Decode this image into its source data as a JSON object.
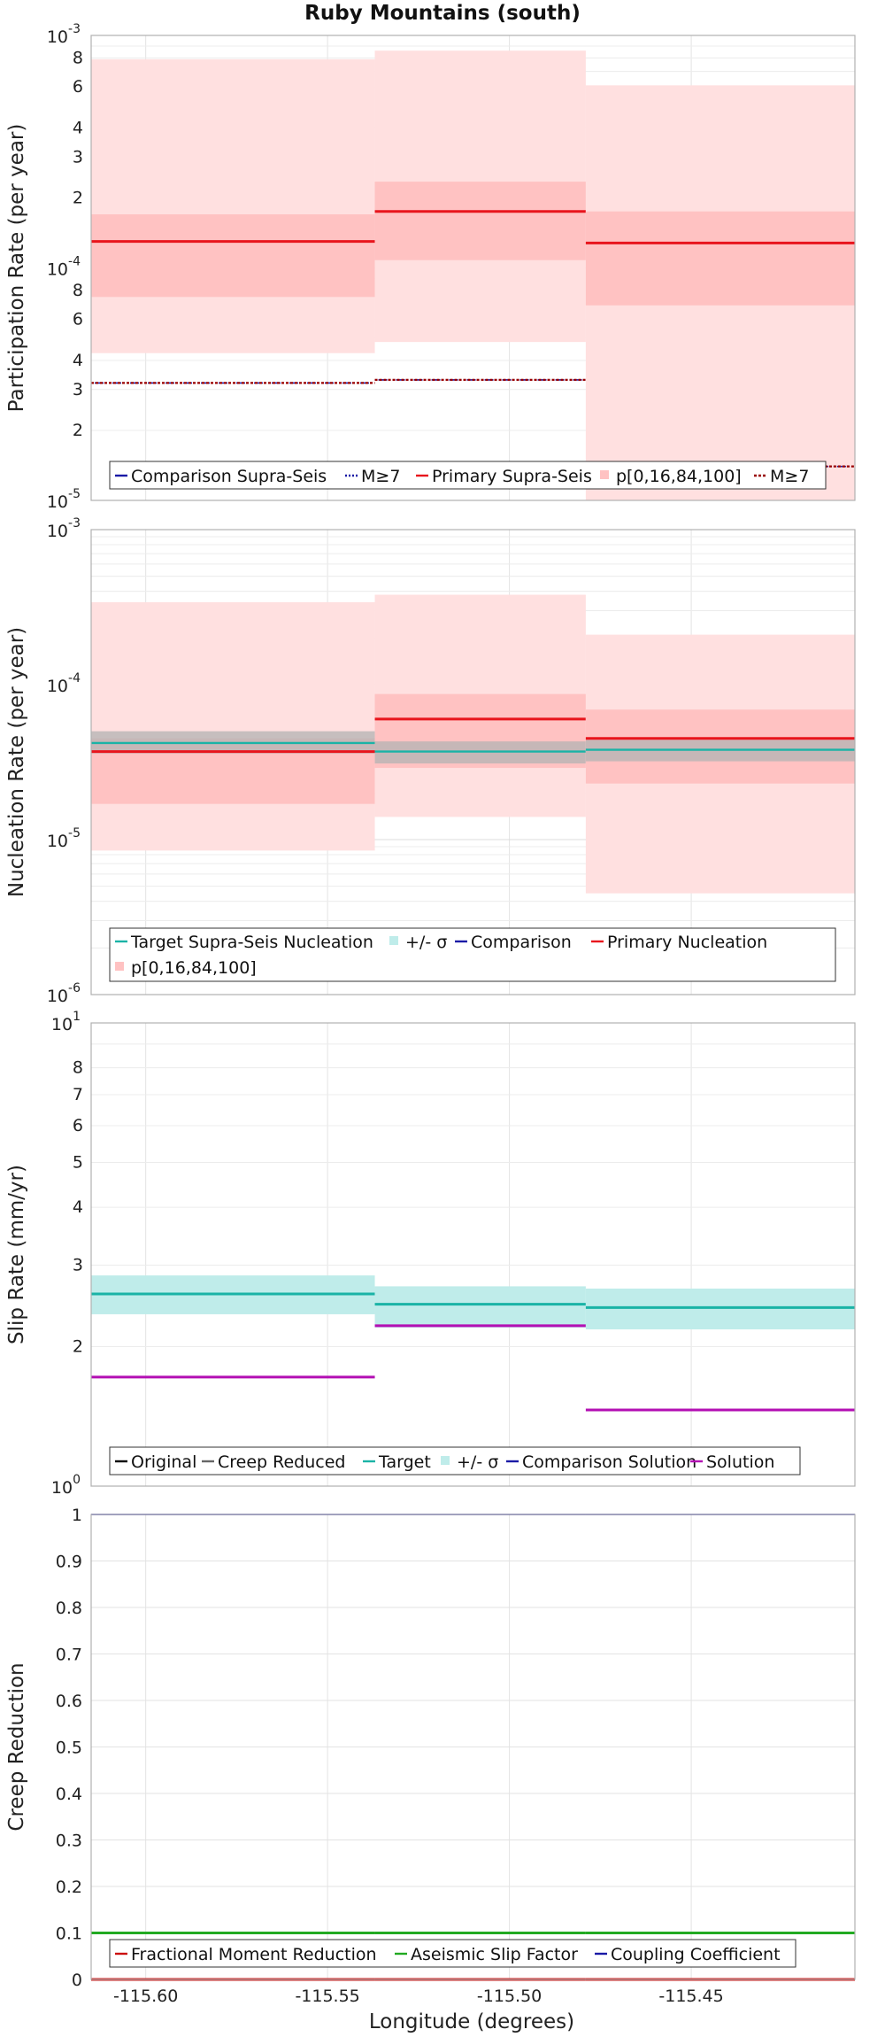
{
  "figure": {
    "title": "Ruby Mountains (south)",
    "xlabel": "Longitude (degrees)",
    "xticks": [
      "-115.60",
      "-115.55",
      "-115.50",
      "-115.45"
    ]
  },
  "chart_data": [
    {
      "type": "line",
      "ylabel": "Participation Rate (per year)",
      "yscale": "log",
      "ylim": [
        1e-05,
        0.001
      ],
      "xlim": [
        -115.615,
        -115.405
      ],
      "bins": [
        {
          "x0": -115.615,
          "x1": -115.537,
          "primary": 0.00013,
          "p16": 7.5e-05,
          "p84": 0.00017,
          "p0": 4.3e-05,
          "p100": 0.00079,
          "comparison_m7": 3.2e-05,
          "primary_m7": 3.2e-05
        },
        {
          "x0": -115.537,
          "x1": -115.479,
          "primary": 0.000175,
          "p16": 0.000108,
          "p84": 0.000235,
          "p0": 4.8e-05,
          "p100": 0.00086,
          "comparison_m7": 3.3e-05,
          "primary_m7": 3.3e-05
        },
        {
          "x0": -115.479,
          "x1": -115.405,
          "primary": 0.000128,
          "p16": 6.9e-05,
          "p84": 0.000175,
          "p0": 1e-05,
          "p100": 0.00061,
          "comparison_m7": 1.4e-05,
          "primary_m7": 1.4e-05
        }
      ],
      "legend": [
        "Comparison Supra-Seis",
        "M≥7",
        "Primary Supra-Seis",
        "p[0,16,84,100]",
        "M≥7"
      ],
      "colors": {
        "primary": "#e8141c",
        "band": "#ffc2c2",
        "band_outer": "#ffe0e0",
        "comparison": "#1a1aa6",
        "primary_m7": "#990000"
      }
    },
    {
      "type": "line",
      "ylabel": "Nucleation Rate (per year)",
      "yscale": "log",
      "ylim": [
        1e-06,
        0.001
      ],
      "xlim": [
        -115.615,
        -115.405
      ],
      "bins": [
        {
          "x0": -115.615,
          "x1": -115.537,
          "primary": 3.7e-05,
          "p16": 1.7e-05,
          "p84": 4.5e-05,
          "p0": 8.5e-06,
          "p100": 0.00034,
          "target": 4.2e-05,
          "sigma_lo": 3.6e-05,
          "sigma_hi": 5e-05,
          "comparison": 4.2e-05
        },
        {
          "x0": -115.537,
          "x1": -115.479,
          "primary": 6e-05,
          "p16": 2.9e-05,
          "p84": 8.7e-05,
          "p0": 1.4e-05,
          "p100": 0.00038,
          "target": 3.7e-05,
          "sigma_lo": 3.1e-05,
          "sigma_hi": 4.3e-05,
          "comparison": 3.7e-05
        },
        {
          "x0": -115.479,
          "x1": -115.405,
          "primary": 4.5e-05,
          "p16": 2.3e-05,
          "p84": 6.9e-05,
          "p0": 4.5e-06,
          "p100": 0.00021,
          "target": 3.8e-05,
          "sigma_lo": 3.2e-05,
          "sigma_hi": 4.4e-05,
          "comparison": 3.8e-05
        }
      ],
      "legend": [
        "Target Supra-Seis Nucleation",
        "+/- σ",
        "Comparison",
        "Primary Nucleation",
        "p[0,16,84,100]"
      ],
      "colors": {
        "target": "#1ab3a6",
        "sigma": "#b3b3b3",
        "comparison": "#1a1aa6",
        "primary": "#e8141c",
        "band": "#ffc2c2",
        "band_outer": "#ffe0e0"
      }
    },
    {
      "type": "line",
      "ylabel": "Slip Rate (mm/yr)",
      "yscale": "log",
      "ylim": [
        1,
        10
      ],
      "xlim": [
        -115.615,
        -115.405
      ],
      "bins": [
        {
          "x0": -115.615,
          "x1": -115.537,
          "target": 2.6,
          "sigma_lo": 2.35,
          "sigma_hi": 2.85,
          "solution": 1.72
        },
        {
          "x0": -115.537,
          "x1": -115.479,
          "target": 2.47,
          "sigma_lo": 2.2,
          "sigma_hi": 2.7,
          "solution": 2.22
        },
        {
          "x0": -115.479,
          "x1": -115.405,
          "target": 2.43,
          "sigma_lo": 2.18,
          "sigma_hi": 2.67,
          "solution": 1.46
        }
      ],
      "legend": [
        "Original",
        "Creep Reduced",
        "Target",
        "+/- σ",
        "Comparison Solution",
        "Solution"
      ],
      "colors": {
        "original": "#000000",
        "creep": "#666666",
        "target": "#1ab3a6",
        "sigma": "#bfecea",
        "comparison": "#1a1aa6",
        "solution": "#b30fb3"
      }
    },
    {
      "type": "line",
      "ylabel": "Creep Reduction",
      "yscale": "linear",
      "ylim": [
        0,
        1
      ],
      "xlim": [
        -115.615,
        -115.405
      ],
      "yticks": [
        "0",
        "0.1",
        "0.2",
        "0.3",
        "0.4",
        "0.5",
        "0.6",
        "0.7",
        "0.8",
        "0.9",
        "1"
      ],
      "series": [
        {
          "name": "Fractional Moment Reduction",
          "values": [
            0,
            0,
            0
          ]
        },
        {
          "name": "Aseismic Slip Factor",
          "values": [
            0.1,
            0.1,
            0.1
          ]
        },
        {
          "name": "Coupling Coefficient",
          "values": [
            1,
            1,
            1
          ]
        }
      ],
      "legend": [
        "Fractional Moment Reduction",
        "Aseismic Slip Factor",
        "Coupling Coefficient"
      ],
      "colors": {
        "fmr": "#cc1111",
        "asf": "#22aa22",
        "cc": "#1a1aa6"
      }
    }
  ]
}
